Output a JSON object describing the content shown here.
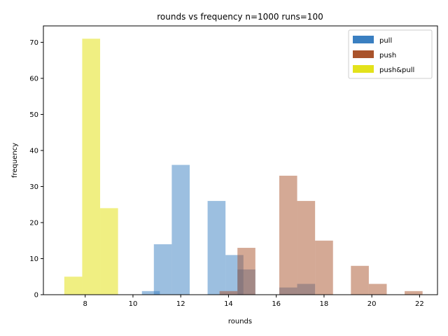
{
  "chart_data": {
    "type": "bar",
    "title": "rounds vs frequency n=1000 runs=100",
    "xlabel": "rounds",
    "ylabel": "frequency",
    "xlim": [
      6.25,
      22.75
    ],
    "ylim": [
      0,
      74.55
    ],
    "xticks": [
      8,
      10,
      12,
      14,
      16,
      18,
      20,
      22
    ],
    "yticks": [
      0,
      10,
      20,
      30,
      40,
      50,
      60,
      70
    ],
    "bar_width": 0.75,
    "legend_position": "top-right",
    "series": [
      {
        "name": "pull",
        "color": "#3a7fc1",
        "opacity": 0.5,
        "legend_color": "#3a7fc1",
        "points": [
          {
            "x": 10.75,
            "y": 1
          },
          {
            "x": 11.25,
            "y": 14
          },
          {
            "x": 12,
            "y": 36
          },
          {
            "x": 13.5,
            "y": 26
          },
          {
            "x": 14.25,
            "y": 11
          },
          {
            "x": 14.75,
            "y": 7
          },
          {
            "x": 16.5,
            "y": 2
          },
          {
            "x": 17.25,
            "y": 3
          }
        ]
      },
      {
        "name": "push",
        "color": "#a9532b",
        "opacity": 0.5,
        "legend_color": "#a9532b",
        "points": [
          {
            "x": 14,
            "y": 1
          },
          {
            "x": 14.75,
            "y": 13
          },
          {
            "x": 16.5,
            "y": 33
          },
          {
            "x": 17.25,
            "y": 26
          },
          {
            "x": 18,
            "y": 15
          },
          {
            "x": 19.5,
            "y": 8
          },
          {
            "x": 20.25,
            "y": 3
          },
          {
            "x": 21.75,
            "y": 1
          }
        ]
      },
      {
        "name": "push&pull",
        "color": "#e3e21b",
        "opacity": 0.55,
        "legend_color": "#e3e21b",
        "points": [
          {
            "x": 7.5,
            "y": 5
          },
          {
            "x": 8.25,
            "y": 71
          },
          {
            "x": 9,
            "y": 24
          }
        ]
      }
    ]
  }
}
